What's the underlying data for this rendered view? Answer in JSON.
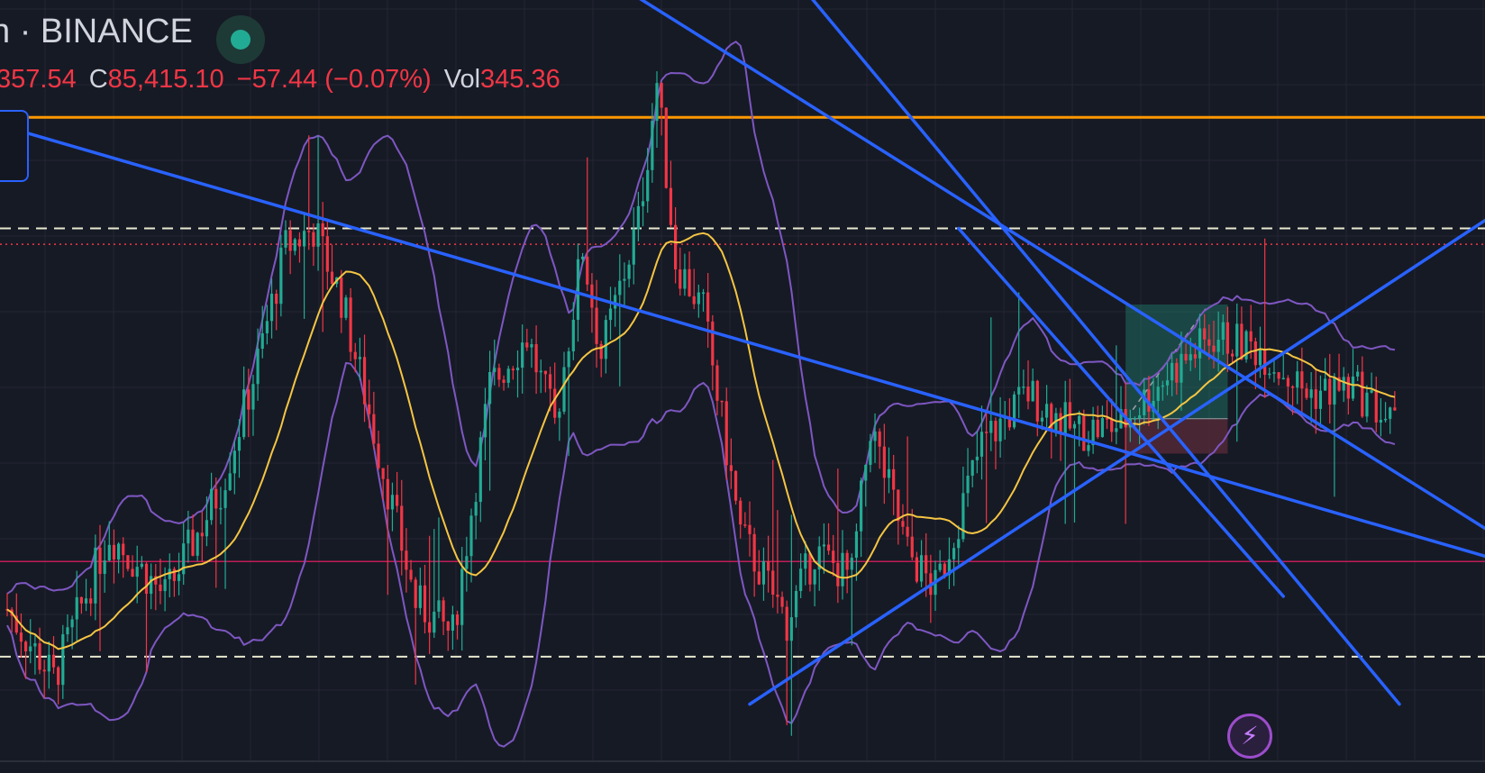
{
  "header": {
    "title_partial": "h · BINANCE",
    "ohlc": {
      "prev_value_partial": "357.54",
      "close_label": "C",
      "close_value": "85,415.10",
      "change": "−57.44 (−0.07%)",
      "vol_label": "Vol",
      "vol_value": "345.36"
    }
  },
  "colors": {
    "background": "#161a25",
    "grid": "#242733",
    "candle_up": "#22ab94",
    "candle_down": "#f23645",
    "ma": "#f5c542",
    "bollinger": "#7e57c2",
    "trendline": "#2962ff",
    "resistance": "#ff9800",
    "dashed_level": "#e8e8d0",
    "pink_level": "#e91e63",
    "long_profit_zone": "#1f6e61",
    "long_stop_zone": "#6b2f3e"
  },
  "icons": {
    "status": "market-open-dot-icon",
    "action": "lightning-bolt-icon"
  },
  "chart_data": {
    "type": "candlestick",
    "ylim": [
      78000,
      90000
    ],
    "xlim": [
      0,
      320
    ],
    "candles": [],
    "indicators": {
      "moving_average": [],
      "bollinger_upper": [],
      "bollinger_lower": []
    },
    "horizontal_levels": [
      {
        "kind": "resistance",
        "price": 88150,
        "style": "solid",
        "color": "#ff9800"
      },
      {
        "kind": "level",
        "price": 86400,
        "style": "dashed",
        "color": "#e8e8d0"
      },
      {
        "kind": "current-price",
        "price": 86150,
        "style": "dotted",
        "color": "#f23645"
      },
      {
        "kind": "level",
        "price": 81150,
        "style": "solid-thin",
        "color": "#e91e63"
      },
      {
        "kind": "level",
        "price": 79650,
        "style": "dashed",
        "color": "#e8e8d0"
      }
    ],
    "trendlines": [
      {
        "x1": -5,
        "y1": 88100,
        "x2": 320,
        "y2": 81200
      },
      {
        "x1": 115,
        "y1": 91000,
        "x2": 320,
        "y2": 81600
      },
      {
        "x1": 160,
        "y1": 91200,
        "x2": 300,
        "y2": 78900
      },
      {
        "x1": 160,
        "y1": 78900,
        "x2": 320,
        "y2": 86600
      },
      {
        "x1": 205,
        "y1": 86400,
        "x2": 275,
        "y2": 80600
      }
    ],
    "long_position": {
      "x_start": 241,
      "x_end": 263,
      "entry": 83400,
      "target": 85200,
      "stop": 82850
    }
  }
}
